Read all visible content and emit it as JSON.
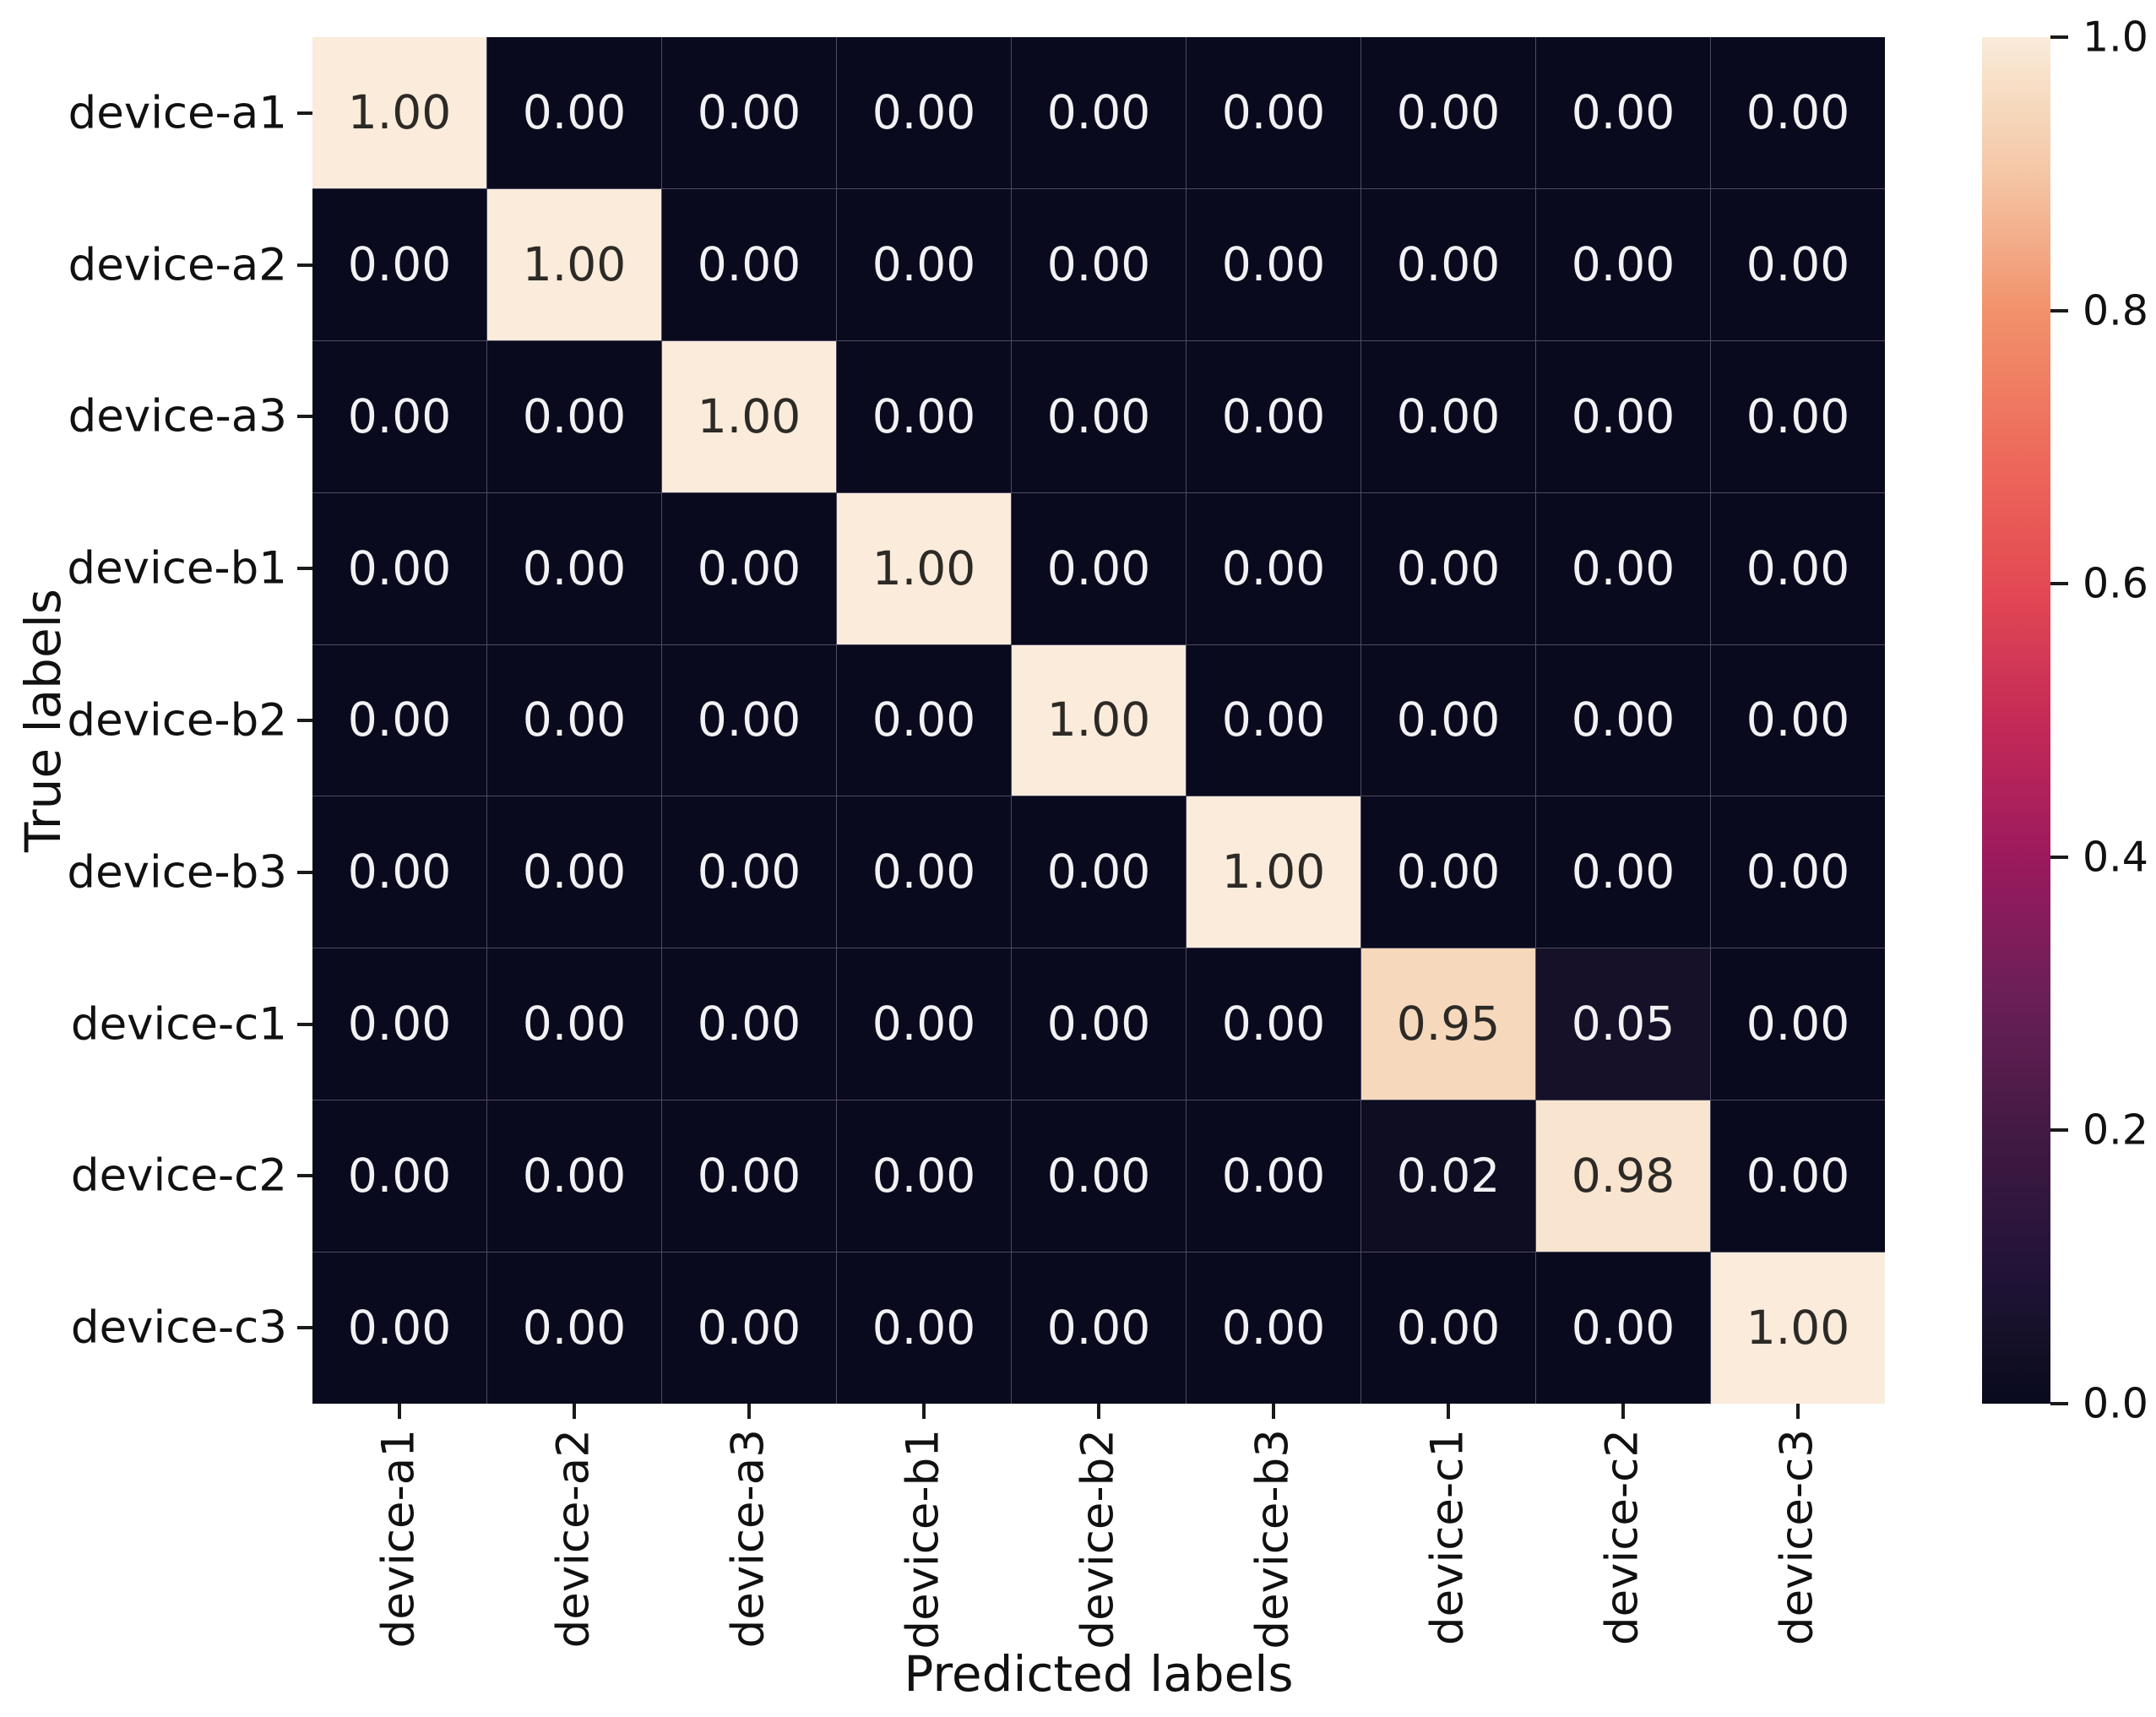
{
  "chart_data": {
    "type": "heatmap",
    "title": "",
    "xlabel": "Predicted labels",
    "ylabel": "True labels",
    "x_tick_labels": [
      "device-a1",
      "device-a2",
      "device-a3",
      "device-b1",
      "device-b2",
      "device-b3",
      "device-c1",
      "device-c2",
      "device-c3"
    ],
    "y_tick_labels": [
      "device-a1",
      "device-a2",
      "device-a3",
      "device-b1",
      "device-b2",
      "device-b3",
      "device-c1",
      "device-c2",
      "device-c3"
    ],
    "matrix": [
      [
        1.0,
        0.0,
        0.0,
        0.0,
        0.0,
        0.0,
        0.0,
        0.0,
        0.0
      ],
      [
        0.0,
        1.0,
        0.0,
        0.0,
        0.0,
        0.0,
        0.0,
        0.0,
        0.0
      ],
      [
        0.0,
        0.0,
        1.0,
        0.0,
        0.0,
        0.0,
        0.0,
        0.0,
        0.0
      ],
      [
        0.0,
        0.0,
        0.0,
        1.0,
        0.0,
        0.0,
        0.0,
        0.0,
        0.0
      ],
      [
        0.0,
        0.0,
        0.0,
        0.0,
        1.0,
        0.0,
        0.0,
        0.0,
        0.0
      ],
      [
        0.0,
        0.0,
        0.0,
        0.0,
        0.0,
        1.0,
        0.0,
        0.0,
        0.0
      ],
      [
        0.0,
        0.0,
        0.0,
        0.0,
        0.0,
        0.0,
        0.95,
        0.05,
        0.0
      ],
      [
        0.0,
        0.0,
        0.0,
        0.0,
        0.0,
        0.0,
        0.02,
        0.98,
        0.0
      ],
      [
        0.0,
        0.0,
        0.0,
        0.0,
        0.0,
        0.0,
        0.0,
        0.0,
        1.0
      ]
    ],
    "annotation_decimals": 2,
    "grid": true,
    "legend_position": "right-colorbar",
    "colorbar": {
      "min": 0.0,
      "max": 1.0,
      "tick_labels": [
        "1.0",
        "0.8",
        "0.6",
        "0.4",
        "0.2",
        "0.0"
      ],
      "colormap": "rocket",
      "gradient_stops": [
        {
          "t": 0.0,
          "color": "#090a1d"
        },
        {
          "t": 0.05,
          "color": "#161129"
        },
        {
          "t": 0.1,
          "color": "#221339"
        },
        {
          "t": 0.2,
          "color": "#431a42"
        },
        {
          "t": 0.3,
          "color": "#6b1f57"
        },
        {
          "t": 0.4,
          "color": "#9c1a5e"
        },
        {
          "t": 0.5,
          "color": "#c52a57"
        },
        {
          "t": 0.6,
          "color": "#e44a53"
        },
        {
          "t": 0.7,
          "color": "#ee6c5b"
        },
        {
          "t": 0.8,
          "color": "#f1926b"
        },
        {
          "t": 0.9,
          "color": "#f5c6a6"
        },
        {
          "t": 0.95,
          "color": "#f6d9bd"
        },
        {
          "t": 1.0,
          "color": "#faebdb"
        }
      ]
    },
    "colors": {
      "annotation_on_dark": "#f2f1f4",
      "annotation_on_light": "#2d2a26",
      "tick_mark": "#1a1a1a",
      "grid_line": "#4d4b62",
      "background": "#ffffff"
    }
  }
}
